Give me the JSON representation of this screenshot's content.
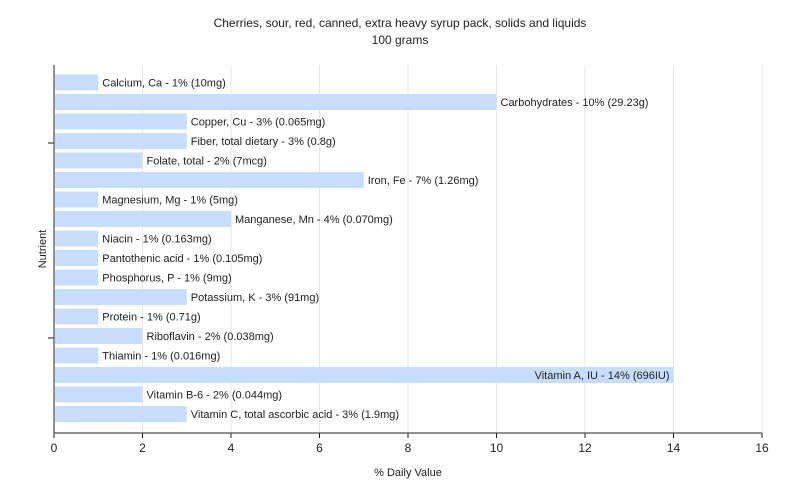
{
  "chart_data": {
    "type": "bar",
    "orientation": "horizontal",
    "title": "Cherries, sour, red, canned, extra heavy syrup pack, solids and liquids",
    "subtitle": "100 grams",
    "xlabel": "% Daily Value",
    "ylabel": "Nutrient",
    "xlim": [
      0,
      16
    ],
    "xticks": [
      0,
      2,
      4,
      6,
      8,
      10,
      12,
      14,
      16
    ],
    "grid": true,
    "bar_color": "#c6defc",
    "categories": [
      "Calcium, Ca - 1% (10mg)",
      "Carbohydrates - 10% (29.23g)",
      "Copper, Cu - 3% (0.065mg)",
      "Fiber, total dietary - 3% (0.8g)",
      "Folate, total - 2% (7mcg)",
      "Iron, Fe - 7% (1.26mg)",
      "Magnesium, Mg - 1% (5mg)",
      "Manganese, Mn - 4% (0.070mg)",
      "Niacin - 1% (0.163mg)",
      "Pantothenic acid - 1% (0.105mg)",
      "Phosphorus, P - 1% (9mg)",
      "Potassium, K - 3% (91mg)",
      "Protein - 1% (0.71g)",
      "Riboflavin - 2% (0.038mg)",
      "Thiamin - 1% (0.016mg)",
      "Vitamin A, IU - 14% (696IU)",
      "Vitamin B-6 - 2% (0.044mg)",
      "Vitamin C, total ascorbic acid - 3% (1.9mg)"
    ],
    "values": [
      1,
      10,
      3,
      3,
      2,
      7,
      1,
      4,
      1,
      1,
      1,
      3,
      1,
      2,
      1,
      14,
      2,
      3
    ]
  }
}
